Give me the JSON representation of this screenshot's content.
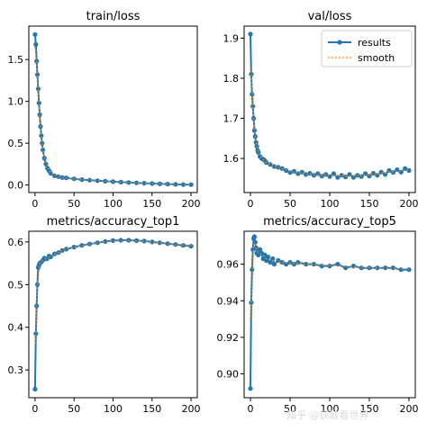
{
  "watermark": "知乎 @获取看世界",
  "legend": {
    "results": "results",
    "smooth": "smooth"
  },
  "colors": {
    "results": "#1f77b4",
    "smooth": "#ff7f0e"
  },
  "chart_data": [
    {
      "type": "line",
      "title": "train/loss",
      "xlim": [
        -8,
        208
      ],
      "ylim": [
        -0.09,
        1.9
      ],
      "xticks": [
        0,
        50,
        100,
        150,
        200
      ],
      "yticks": [
        0.0,
        0.5,
        1.0,
        1.5
      ],
      "ytick_decimals": 1,
      "legend": false,
      "series": [
        {
          "name": "results",
          "x": [
            0,
            1,
            2,
            3,
            4,
            5,
            6,
            7,
            8,
            9,
            10,
            12,
            14,
            16,
            18,
            20,
            25,
            30,
            35,
            40,
            50,
            60,
            70,
            80,
            90,
            100,
            110,
            120,
            130,
            140,
            150,
            160,
            170,
            180,
            190,
            200
          ],
          "y": [
            1.8,
            1.68,
            1.48,
            1.32,
            1.15,
            0.98,
            0.84,
            0.7,
            0.59,
            0.5,
            0.42,
            0.32,
            0.25,
            0.2,
            0.17,
            0.14,
            0.11,
            0.1,
            0.09,
            0.085,
            0.075,
            0.065,
            0.058,
            0.052,
            0.045,
            0.04,
            0.035,
            0.03,
            0.026,
            0.022,
            0.018,
            0.014,
            0.011,
            0.008,
            0.006,
            0.005
          ]
        }
      ]
    },
    {
      "type": "line",
      "title": "val/loss",
      "xlim": [
        -8,
        208
      ],
      "ylim": [
        1.515,
        1.93
      ],
      "xticks": [
        0,
        50,
        100,
        150,
        200
      ],
      "yticks": [
        1.6,
        1.7,
        1.8,
        1.9
      ],
      "ytick_decimals": 1,
      "legend": true,
      "legend_position": "top-right",
      "series": [
        {
          "name": "results",
          "x": [
            0,
            1,
            2,
            3,
            4,
            5,
            6,
            7,
            8,
            9,
            10,
            12,
            14,
            16,
            18,
            20,
            25,
            30,
            35,
            40,
            45,
            50,
            55,
            60,
            65,
            70,
            75,
            80,
            85,
            90,
            95,
            100,
            105,
            110,
            115,
            120,
            125,
            130,
            135,
            140,
            145,
            150,
            155,
            160,
            165,
            170,
            175,
            180,
            185,
            190,
            195,
            200
          ],
          "y": [
            1.91,
            1.81,
            1.76,
            1.73,
            1.7,
            1.67,
            1.655,
            1.64,
            1.63,
            1.62,
            1.615,
            1.605,
            1.6,
            1.598,
            1.595,
            1.59,
            1.585,
            1.58,
            1.578,
            1.575,
            1.57,
            1.565,
            1.568,
            1.562,
            1.566,
            1.56,
            1.563,
            1.558,
            1.562,
            1.556,
            1.56,
            1.555,
            1.562,
            1.553,
            1.558,
            1.554,
            1.56,
            1.553,
            1.558,
            1.555,
            1.562,
            1.556,
            1.563,
            1.558,
            1.566,
            1.56,
            1.57,
            1.565,
            1.572,
            1.566,
            1.575,
            1.57
          ]
        }
      ]
    },
    {
      "type": "line",
      "title": "metrics/accuracy_top1",
      "xlim": [
        -8,
        208
      ],
      "ylim": [
        0.235,
        0.625
      ],
      "xticks": [
        0,
        50,
        100,
        150,
        200
      ],
      "yticks": [
        0.3,
        0.4,
        0.5,
        0.6
      ],
      "ytick_decimals": 1,
      "legend": false,
      "series": [
        {
          "name": "results",
          "x": [
            0,
            1,
            2,
            3,
            4,
            5,
            6,
            8,
            10,
            12,
            15,
            18,
            20,
            25,
            30,
            35,
            40,
            50,
            60,
            70,
            80,
            90,
            100,
            110,
            120,
            130,
            140,
            150,
            160,
            170,
            180,
            190,
            200
          ],
          "y": [
            0.255,
            0.385,
            0.45,
            0.5,
            0.54,
            0.545,
            0.55,
            0.553,
            0.557,
            0.562,
            0.56,
            0.567,
            0.565,
            0.572,
            0.575,
            0.58,
            0.583,
            0.588,
            0.592,
            0.595,
            0.598,
            0.601,
            0.603,
            0.604,
            0.604,
            0.603,
            0.602,
            0.6,
            0.598,
            0.596,
            0.594,
            0.592,
            0.59
          ]
        }
      ]
    },
    {
      "type": "line",
      "title": "metrics/accuracy_top5",
      "xlim": [
        -8,
        208
      ],
      "ylim": [
        0.887,
        0.978
      ],
      "xticks": [
        0,
        50,
        100,
        150,
        200
      ],
      "yticks": [
        0.9,
        0.92,
        0.94,
        0.96
      ],
      "ytick_decimals": 2,
      "legend": false,
      "series": [
        {
          "name": "results",
          "x": [
            0,
            1,
            2,
            3,
            4,
            5,
            6,
            7,
            8,
            9,
            10,
            12,
            14,
            16,
            18,
            20,
            22,
            25,
            28,
            30,
            35,
            40,
            45,
            50,
            55,
            60,
            70,
            80,
            90,
            100,
            110,
            120,
            130,
            140,
            150,
            160,
            170,
            180,
            190,
            200
          ],
          "y": [
            0.892,
            0.939,
            0.957,
            0.968,
            0.974,
            0.975,
            0.972,
            0.969,
            0.966,
            0.967,
            0.965,
            0.968,
            0.966,
            0.963,
            0.965,
            0.962,
            0.964,
            0.961,
            0.963,
            0.96,
            0.962,
            0.961,
            0.96,
            0.961,
            0.96,
            0.961,
            0.96,
            0.96,
            0.959,
            0.959,
            0.96,
            0.958,
            0.959,
            0.958,
            0.958,
            0.958,
            0.958,
            0.958,
            0.957,
            0.957
          ]
        }
      ]
    }
  ]
}
